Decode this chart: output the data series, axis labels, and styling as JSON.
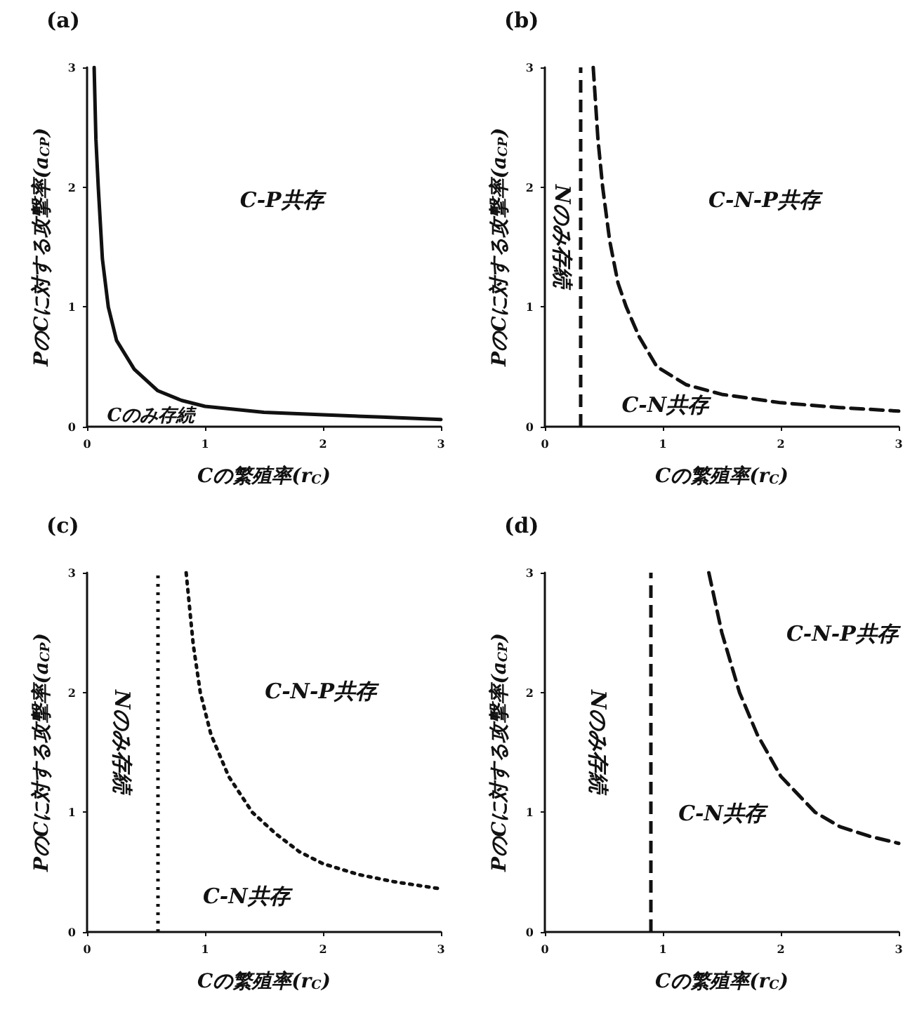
{
  "chart_data": [
    {
      "type": "line",
      "title": "(a)",
      "xlabel": "Cの繁殖率(r$_{C}$)",
      "ylabel": "PのCに対する攻撃率(a$_{CP}$)",
      "xlim": [
        0,
        3
      ],
      "ylim": [
        0,
        3
      ],
      "xticks": [
        0,
        1,
        2,
        3
      ],
      "yticks": [
        0,
        1,
        2,
        3
      ],
      "grid": false,
      "marker": "none",
      "line_style": "solid",
      "series": [
        {
          "color": "#111111",
          "x": [
            0.06,
            0.075,
            0.095,
            0.13,
            0.18,
            0.25,
            0.4,
            0.6,
            0.8,
            1,
            1.5,
            2,
            2.5,
            3
          ],
          "values": [
            3,
            2.4,
            2,
            1.4,
            1,
            0.72,
            0.48,
            0.3,
            0.22,
            0.17,
            0.12,
            0.1,
            0.08,
            0.06
          ]
        }
      ],
      "annotations": [
        "C-P共存",
        "Cのみ存続"
      ]
    },
    {
      "type": "line",
      "title": "(b)",
      "xlabel": "Cの繁殖率(r$_{C}$)",
      "ylabel": "PのCに対する攻撃率(a$_{CP}$)",
      "xlim": [
        0,
        3
      ],
      "ylim": [
        0,
        3
      ],
      "xticks": [
        0,
        1,
        2,
        3
      ],
      "yticks": [
        0,
        1,
        2,
        3
      ],
      "grid": false,
      "marker": "none",
      "line_style": "dashed",
      "series": [
        {
          "color": "#111111",
          "x": [
            0.41,
            0.45,
            0.49,
            0.55,
            0.62,
            0.69,
            0.8,
            0.95,
            1.2,
            1.5,
            2,
            2.5,
            3
          ],
          "values": [
            3,
            2.4,
            2,
            1.55,
            1.2,
            1,
            0.75,
            0.5,
            0.35,
            0.27,
            0.2,
            0.16,
            0.13
          ]
        }
      ],
      "ref_lines": [
        {
          "axis": "x",
          "value": 0.3,
          "color": "#111111",
          "line_style": "dashed"
        }
      ],
      "annotations": [
        "C-N-P共存",
        "Nのみ存続",
        "C-N共存"
      ]
    },
    {
      "type": "line",
      "title": "(c)",
      "xlabel": "Cの繁殖率(r$_{C}$)",
      "ylabel": "PのCに対する攻撃率(a$_{CP}$)",
      "xlim": [
        0,
        3
      ],
      "ylim": [
        0,
        3
      ],
      "xticks": [
        0,
        1,
        2,
        3
      ],
      "yticks": [
        0,
        1,
        2,
        3
      ],
      "grid": false,
      "marker": "none",
      "line_style": "dotted",
      "series": [
        {
          "color": "#111111",
          "x": [
            0.84,
            0.9,
            0.96,
            1.05,
            1.2,
            1.4,
            1.6,
            1.8,
            2,
            2.3,
            2.6,
            3
          ],
          "values": [
            3,
            2.4,
            2,
            1.65,
            1.3,
            1,
            0.82,
            0.67,
            0.57,
            0.48,
            0.42,
            0.36
          ]
        }
      ],
      "ref_lines": [
        {
          "axis": "x",
          "value": 0.6,
          "color": "#111111",
          "line_style": "dotted"
        }
      ],
      "annotations": [
        "C-N-P共存",
        "Nのみ存続",
        "C-N共存"
      ]
    },
    {
      "type": "line",
      "title": "(d)",
      "xlabel": "Cの繁殖率(r$_{C}$)",
      "ylabel": "PのCに対する攻撃率(a$_{CP}$)",
      "xlim": [
        0,
        3
      ],
      "ylim": [
        0,
        3
      ],
      "xticks": [
        0,
        1,
        2,
        3
      ],
      "yticks": [
        0,
        1,
        2,
        3
      ],
      "grid": false,
      "marker": "none",
      "line_style": "dashed",
      "series": [
        {
          "color": "#111111",
          "x": [
            1.39,
            1.5,
            1.65,
            1.8,
            2,
            2.29,
            2.5,
            2.75,
            3
          ],
          "values": [
            3,
            2.5,
            2,
            1.65,
            1.3,
            1,
            0.88,
            0.8,
            0.74
          ]
        }
      ],
      "ref_lines": [
        {
          "axis": "x",
          "value": 0.9,
          "color": "#111111",
          "line_style": "dashed"
        }
      ],
      "annotations": [
        "C-N-P共存",
        "Nのみ存続",
        "C-N共存"
      ]
    }
  ]
}
